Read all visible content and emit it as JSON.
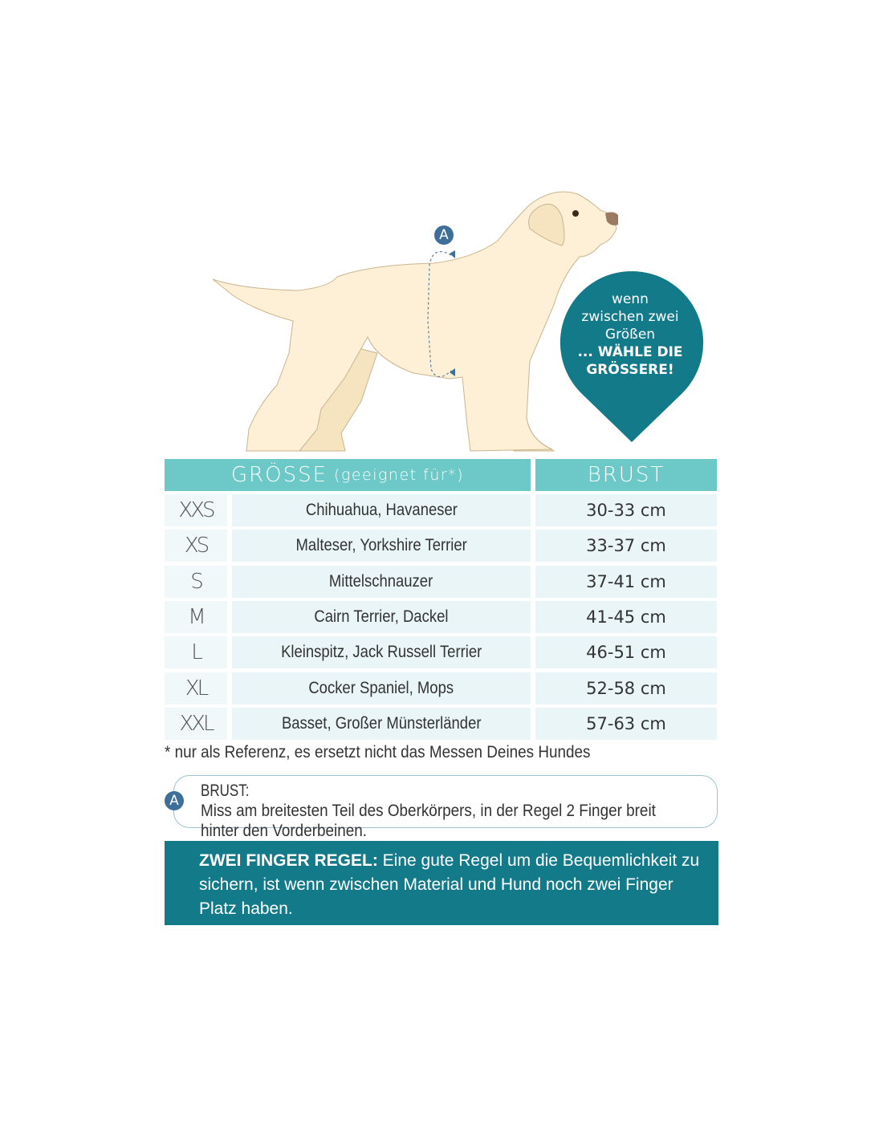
{
  "illustration": {
    "marker": "A"
  },
  "bubble": {
    "line1": "wenn",
    "line2": "zwischen zwei",
    "line3": "Größen",
    "line4": "... WÄHLE DIE",
    "line5": "GRÖSSERE!"
  },
  "colors": {
    "header": "#6dc8c8",
    "dark_teal": "#137a8a",
    "row": "#eaf5f8",
    "marker": "#3e6f99"
  },
  "table": {
    "header_size": "GRÖSSE",
    "header_size_note": "(geeignet für*)",
    "header_brust": "BRUST",
    "rows": [
      {
        "size": "XXS",
        "breeds": "Chihuahua, Havaneser",
        "brust": "30-33 cm"
      },
      {
        "size": "XS",
        "breeds": "Malteser, Yorkshire Terrier",
        "brust": "33-37 cm"
      },
      {
        "size": "S",
        "breeds": "Mittelschnauzer",
        "brust": "37-41 cm"
      },
      {
        "size": "M",
        "breeds": "Cairn Terrier, Dackel",
        "brust": "41-45 cm"
      },
      {
        "size": "L",
        "breeds": "Kleinspitz, Jack Russell Terrier",
        "brust": "46-51 cm"
      },
      {
        "size": "XL",
        "breeds": "Cocker Spaniel, Mops",
        "brust": "52-58 cm"
      },
      {
        "size": "XXL",
        "breeds": "Basset, Großer Münsterländer",
        "brust": "57-63 cm"
      }
    ]
  },
  "footnote": "* nur als Referenz, es ersetzt nicht das Messen Deines Hundes",
  "measure_note": {
    "marker": "A",
    "label": "BRUST:",
    "text": " Miss am breitesten Teil des Oberkörpers, in der Regel 2 Finger breit hinter den Vorderbeinen."
  },
  "rule": {
    "label": "ZWEI FINGER REGEL:",
    "text": " Eine gute Regel um die Bequemlichkeit zu sichern, ist wenn zwischen Material und Hund noch zwei Finger Platz haben."
  }
}
